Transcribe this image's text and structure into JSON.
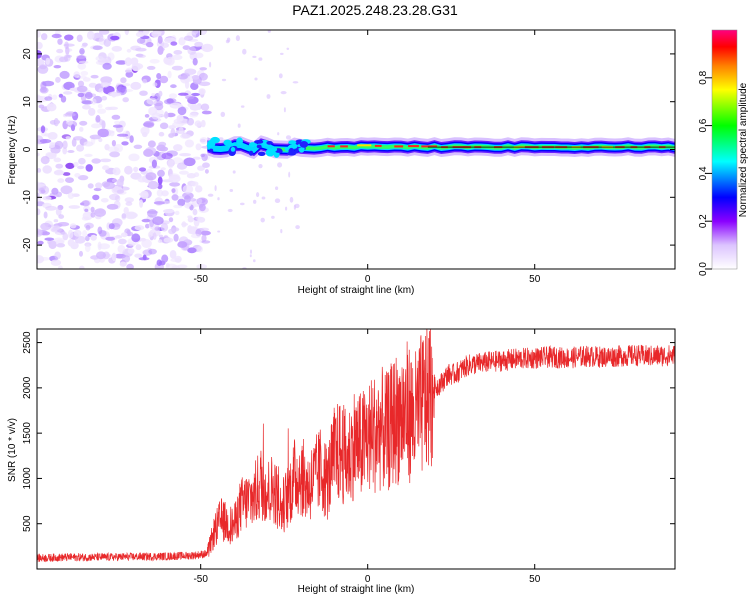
{
  "title": "PAZ1.2025.248.23.28.G31",
  "chart_data": [
    {
      "type": "heatmap",
      "name": "spectrogram",
      "xlabel": "Height of straight line (km)",
      "ylabel": "Frequency (Hz)",
      "xlim": [
        -99,
        92
      ],
      "ylim": [
        -25,
        25
      ],
      "xticks": [
        -50,
        0,
        50
      ],
      "yticks": [
        -20,
        -10,
        0,
        10,
        20
      ],
      "colorbar": {
        "label": "Normalized spectral amplitude",
        "range": [
          0,
          1
        ],
        "ticks": [
          0.0,
          0.2,
          0.4,
          0.6,
          0.8
        ],
        "colormap": [
          "#ffffff",
          "#c9a6ff",
          "#8a00ff",
          "#0000ff",
          "#00ffff",
          "#00ff00",
          "#ffff00",
          "#ff8000",
          "#ff0000",
          "#ff0080"
        ]
      },
      "features": {
        "noise_region_x": [
          -99,
          -48
        ],
        "signal_start_x": -48,
        "signal_center_frequency_hz": 0.5
      }
    },
    {
      "type": "line",
      "name": "snr",
      "xlabel": "Height of straight line (km)",
      "ylabel": "SNR (10 * v/v)",
      "xlim": [
        -99,
        92
      ],
      "ylim": [
        0,
        2650
      ],
      "xticks": [
        -50,
        0,
        50
      ],
      "yticks": [
        500,
        1000,
        1500,
        2000,
        2500
      ],
      "color": "#e8282a",
      "x": [
        -99,
        -90,
        -80,
        -70,
        -60,
        -52,
        -48,
        -46,
        -44,
        -42,
        -40,
        -38,
        -36,
        -34,
        -32,
        -30,
        -28,
        -26,
        -24,
        -22,
        -20,
        -18,
        -16,
        -14,
        -12,
        -10,
        -8,
        -6,
        -4,
        -2,
        0,
        2,
        4,
        6,
        8,
        10,
        12,
        14,
        16,
        18,
        20,
        22,
        24,
        26,
        28,
        30,
        35,
        40,
        45,
        50,
        55,
        60,
        65,
        70,
        75,
        80,
        85,
        92
      ],
      "values": [
        120,
        130,
        130,
        135,
        140,
        150,
        170,
        400,
        550,
        500,
        480,
        700,
        750,
        800,
        950,
        850,
        900,
        650,
        800,
        1000,
        1050,
        900,
        1000,
        1100,
        950,
        1250,
        1300,
        1200,
        1400,
        1350,
        1450,
        1500,
        1550,
        1500,
        1650,
        1700,
        1750,
        1650,
        1800,
        1900,
        2000,
        2050,
        2150,
        2150,
        2200,
        2250,
        2280,
        2300,
        2320,
        2330,
        2340,
        2330,
        2350,
        2340,
        2350,
        2360,
        2350,
        2360
      ]
    }
  ]
}
